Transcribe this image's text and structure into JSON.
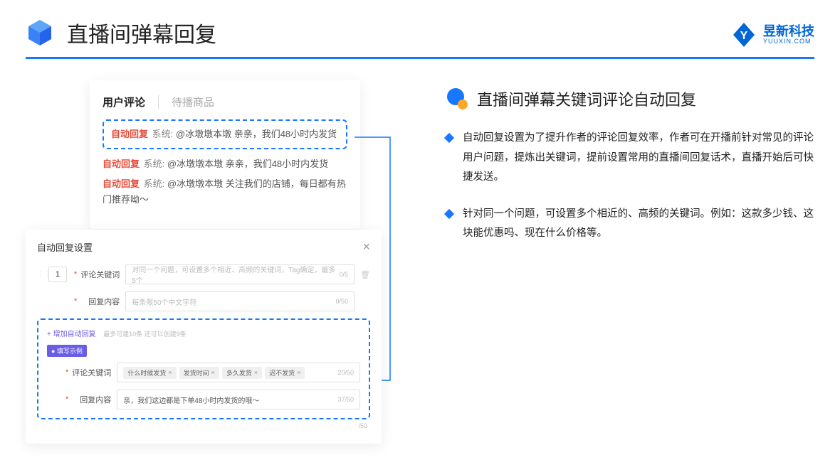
{
  "header": {
    "title": "直播间弹幕回复"
  },
  "brand": {
    "name": "昱新科技",
    "sub": "YUUXIN.COM"
  },
  "comments_card": {
    "tab_active": "用户评论",
    "tab_inactive": "待播商品",
    "auto_badge": "自动回复",
    "sys_label": "系统:",
    "highlighted": "@冰墩墩本墩 亲亲，我们48小时内发货",
    "line2": "@冰墩墩本墩 亲亲，我们48小时内发货",
    "line3": "@冰墩墩本墩 关注我们的店铺，每日都有热门推荐呦～"
  },
  "settings_card": {
    "title": "自动回复设置",
    "num": "1",
    "kw_label": "评论关键词",
    "kw_placeholder": "对同一个问题，可设置多个相近、高频的关键词，Tag确定，最多5个",
    "kw_count": "0/5",
    "content_label": "回复内容",
    "content_placeholder": "每条限50个中文字符",
    "content_count": "0/50",
    "add_link": "+ 增加自动回复",
    "add_hint": "最多可建10条 还可以创建9条",
    "example_badge": "● 填写示例",
    "ex_kw_label": "评论关键词",
    "ex_tags": [
      "什么时候发货",
      "发货时间",
      "多久发货",
      "迟不发货"
    ],
    "ex_kw_count": "20/50",
    "ex_content_label": "回复内容",
    "ex_content_value": "亲，我们这边都是下单48小时内发货的哦～",
    "ex_content_count": "37/50",
    "outer_count": "/50"
  },
  "right": {
    "title": "直播间弹幕关键词评论自动回复",
    "bullets": [
      "自动回复设置为了提升作者的评论回复效率，作者可在开播前针对常见的评论用户问题，提炼出关键词，提前设置常用的直播间回复话术，直播开始后可快捷发送。",
      "针对同一个问题，可设置多个相近的、高频的关键词。例如：这款多少钱、这块能优惠吗、现在什么价格等。"
    ]
  },
  "colors": {
    "primary": "#1677ff",
    "accent_red": "#e74c3c",
    "purple": "#6b5ce7",
    "orange": "#ffa726"
  }
}
